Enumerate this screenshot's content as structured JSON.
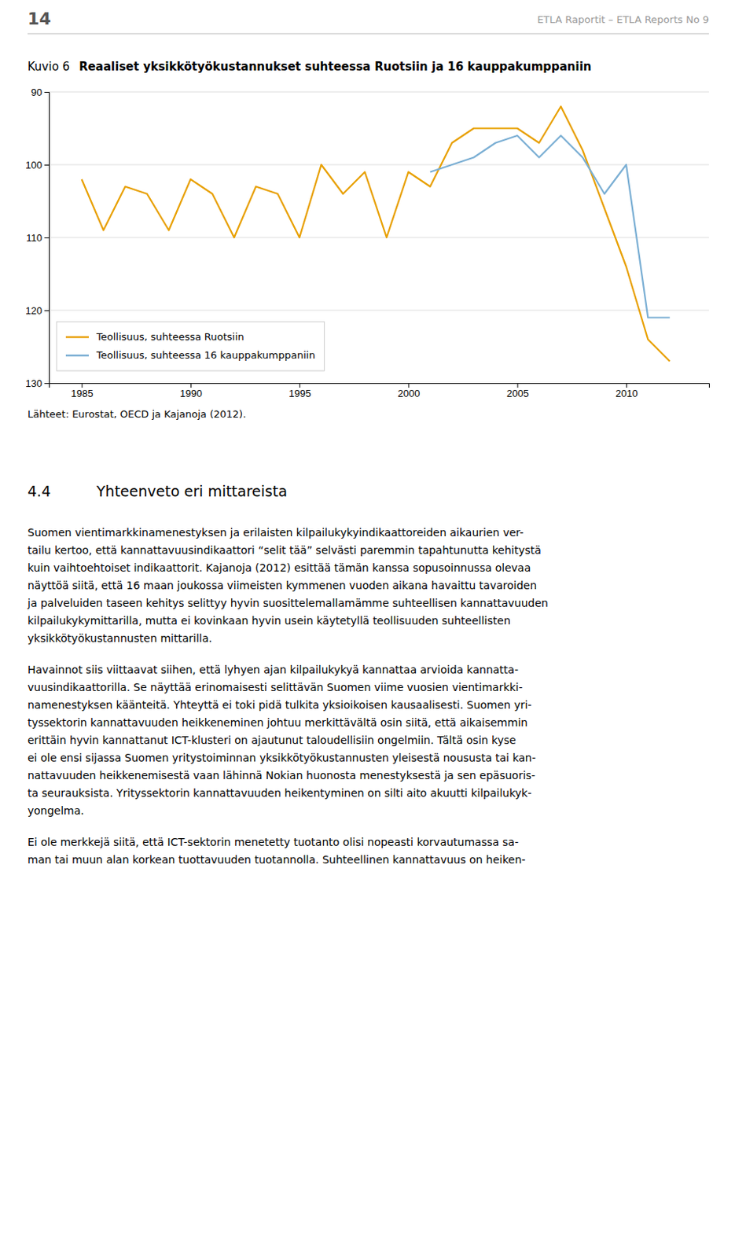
{
  "page": {
    "page_number": "14",
    "header": "ETLA Raportit – ETLA Reports   No 9",
    "figure_label": "Kuvio 6",
    "source": "Lähteet: Eurostat, OECD ja Kajanoja (2012).",
    "section_number": "4.4",
    "section_heading": "Yhteenveto eri mittareista",
    "body": [
      [
        "Suomen vientimarkkinamenestyksen ja erilaisten kilpailukykyindikaattoreiden aikaurien ver-",
        "tailu kertoo, että kannattavuusindikaattori “selit tää” selvästi paremmin tapahtunutta kehitystä",
        "kuin vaihtoehtoiset indikaattorit. Kajanoja (2012) esittää tämän kanssa sopusoinnussa olevaa",
        "näyttöä siitä, että 16 maan joukossa viimeisten kymmenen vuoden aikana havaittu tavaroiden",
        "ja palveluiden taseen kehitys selittyy hyvin suosittelemallamämme suhteellisen kannattavuuden",
        "kilpailukykymittarilla, mutta ei kovinkaan hyvin usein käytetyllä teollisuuden suhteellisten",
        "yksikkötyökustannusten mittarilla."
      ],
      [
        "Havainnot siis viittaavat siihen, että lyhyen ajan kilpailukykyä kannattaa arvioida kannatta-",
        "vuusindikaattorilla. Se näyttää erinomaisesti selittävän Suomen viime vuosien vientimarkki-",
        "namenestyksen käänteitä. Yhteyttä ei toki pidä tulkita yksioikoisen kausaalisesti. Suomen yri-",
        "tyssektorin kannattavuuden heikkeneminen johtuu merkittävältä osin siitä, että aikaisemmin",
        "erittäin hyvin kannattanut ICT-klusteri on ajautunut taloudellisiin ongelmiin. Tältä osin kyse",
        "ei ole ensi sijassa Suomen yritystoiminnan yksikkötyökustannusten yleisestä noususta tai kan-",
        "nattavuuden heikkenemisestä vaan lähinnä Nokian huonosta menestyksestä ja sen epäsuoris-",
        "ta seurauksista. Yrityssektorin kannattavuuden heikentyminen on silti aito akuutti kilpailukyk-",
        "yongelma."
      ],
      [
        "Ei ole merkkejä siitä, että ICT-sektorin menetetty tuotanto olisi nopeasti korvautumassa sa-",
        "man tai muun alan korkean tuottavuuden tuotannolla. Suhteellinen kannattavuus on heiken-"
      ]
    ]
  },
  "chart_data": {
    "type": "line",
    "title": "Reaaliset yksikkötyökustannukset suhteessa Ruotsiin ja 16 kauppakumppaniin",
    "series": [
      {
        "name": "Teollisuus, suhteessa Ruotsiin",
        "color": "#E8A000",
        "x": [
          1985,
          1986,
          1987,
          1988,
          1989,
          1990,
          1991,
          1992,
          1993,
          1994,
          1995,
          1996,
          1997,
          1998,
          1999,
          2000,
          2001,
          2002,
          2003,
          2004,
          2005,
          2006,
          2007,
          2008,
          2009,
          2010,
          2011,
          2012
        ],
        "values": [
          102,
          109,
          103,
          104,
          109,
          102,
          104,
          110,
          103,
          104,
          110,
          100,
          104,
          101,
          110,
          101,
          103,
          97,
          95,
          95,
          95,
          97,
          92,
          98,
          106,
          114,
          124,
          127
        ]
      },
      {
        "name": "Teollisuus, suhteessa 16 kauppakumppaniin",
        "color": "#7BAFD4",
        "x": [
          2001,
          2002,
          2003,
          2004,
          2005,
          2006,
          2007,
          2008,
          2009,
          2010,
          2011,
          2012
        ],
        "values": [
          101,
          100,
          99,
          97,
          96,
          99,
          96,
          99,
          104,
          100,
          121,
          121
        ]
      }
    ],
    "xlim": [
      1983.5,
      2013.8
    ],
    "xticks": [
      1985,
      1990,
      1995,
      2000,
      2005,
      2010
    ],
    "ylim": [
      130,
      90
    ],
    "yticks": [
      90,
      100,
      110,
      120,
      130
    ],
    "grid": true,
    "legend": "lower left"
  }
}
